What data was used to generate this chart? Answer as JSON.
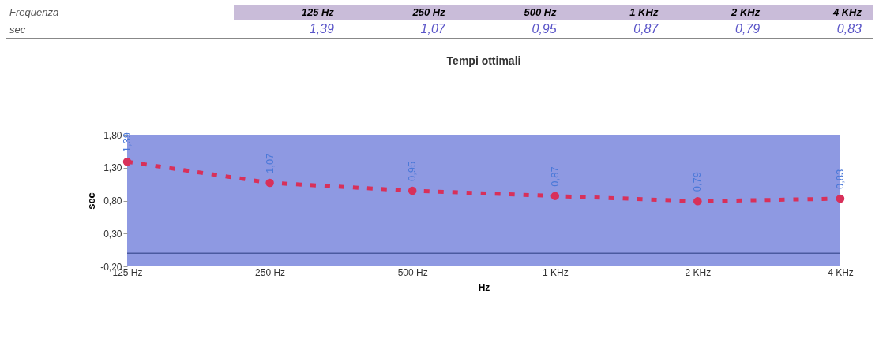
{
  "chart_data": {
    "type": "line",
    "title": "Tempi ottimali",
    "xlabel": "Hz",
    "ylabel": "sec",
    "categories": [
      "125 Hz",
      "250 Hz",
      "500 Hz",
      "1 KHz",
      "2 KHz",
      "4 KHz"
    ],
    "series": [
      {
        "color": "#d8305a",
        "values": [
          1.39,
          1.07,
          0.95,
          0.87,
          0.79,
          0.83
        ],
        "value_labels": [
          "1,39",
          "1,07",
          "0,95",
          "0,87",
          "0,79",
          "0,83"
        ]
      }
    ],
    "ylim": [
      -0.2,
      1.8
    ],
    "yticks": [
      {
        "value": -0.2,
        "label": "-0,20"
      },
      {
        "value": 0.3,
        "label": "0,30"
      },
      {
        "value": 0.8,
        "label": "0,80"
      },
      {
        "value": 1.3,
        "label": "1,30"
      },
      {
        "value": 1.8,
        "label": "1,80"
      }
    ],
    "ref_lines": [
      {
        "axis": "y",
        "value": 0,
        "color": "#4a5aa0"
      }
    ],
    "annotations": [
      "Frequenza",
      "sec"
    ],
    "marker": "circle",
    "line_style": "dotted",
    "grid": false,
    "legend": false
  }
}
